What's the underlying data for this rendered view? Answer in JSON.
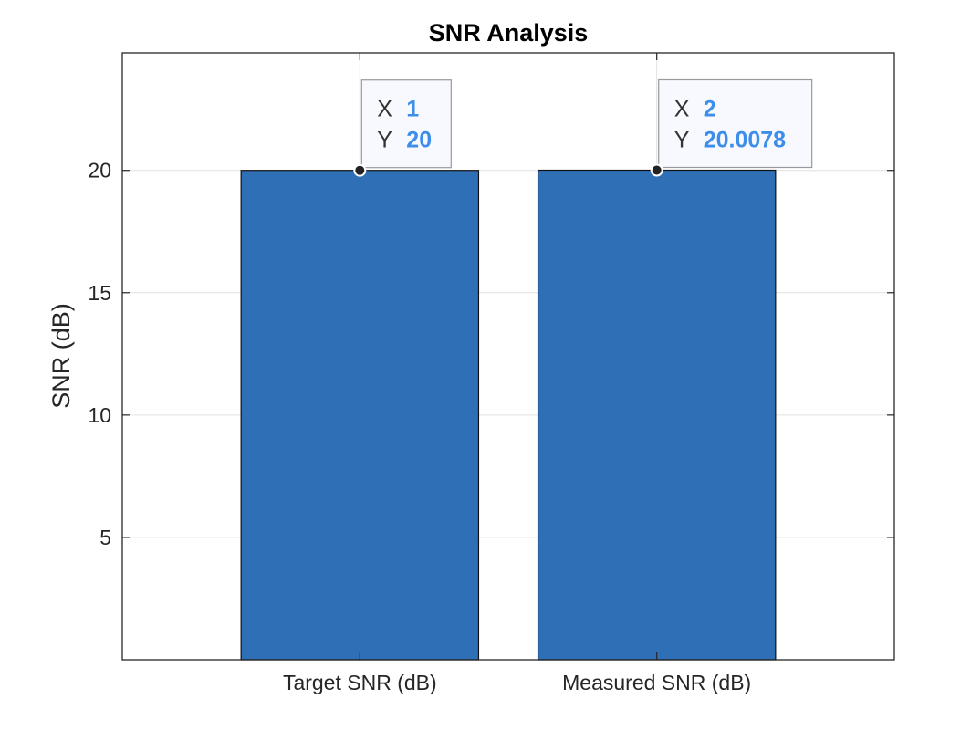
{
  "chart_data": {
    "type": "bar",
    "title": "SNR Analysis",
    "ylabel": "SNR (dB)",
    "xlabel": "",
    "categories": [
      "Target SNR (dB)",
      "Measured SNR (dB)"
    ],
    "x": [
      1,
      2
    ],
    "values": [
      20,
      20.0078
    ],
    "xlim": [
      0.2,
      2.8
    ],
    "ylim": [
      0,
      24.8
    ],
    "yticks": [
      5,
      10,
      15,
      20
    ],
    "grid": true,
    "bar_color": "#2f6fb6",
    "datatips": [
      {
        "x_label": "X",
        "x_value": "1",
        "y_label": "Y",
        "y_value": "20"
      },
      {
        "x_label": "X",
        "x_value": "2",
        "y_label": "Y",
        "y_value": "20.0078"
      }
    ],
    "datatip_value_color": "#3d8ee8"
  }
}
